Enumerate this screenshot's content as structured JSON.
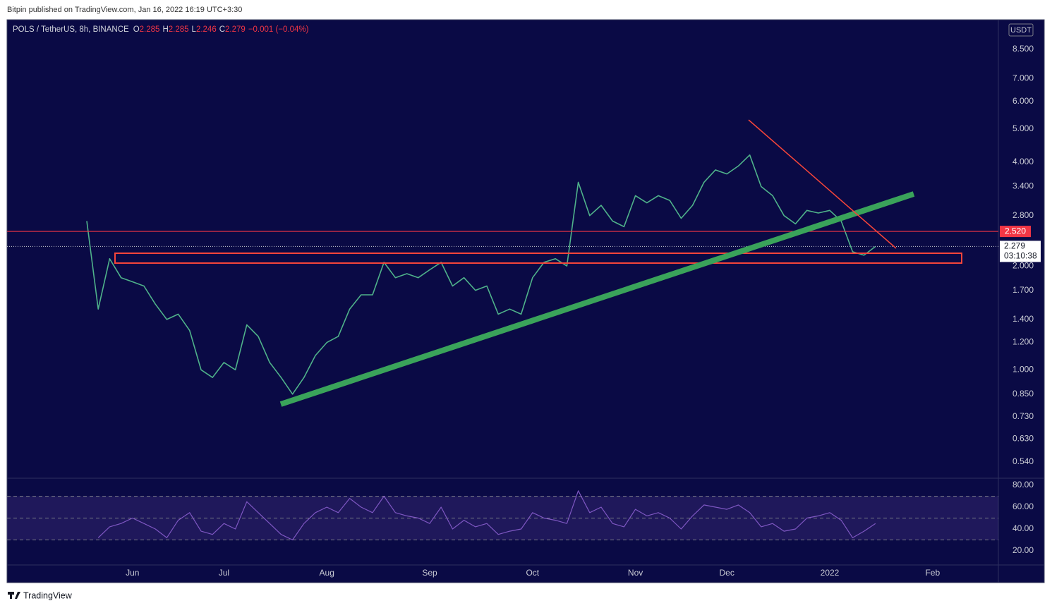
{
  "header": {
    "publisher": "Bitpin published on TradingView.com, Jan 16, 2022 16:19 UTC+3:30",
    "brand": "TradingView"
  },
  "chart_data": [
    {
      "type": "line",
      "title": "POLS / TetherUS, 8h, BINANCE",
      "ohlc": [
        {
          "label": "O",
          "value": 2.285
        },
        {
          "label": "H",
          "value": 2.285
        },
        {
          "label": "L",
          "value": 2.246
        },
        {
          "label": "C",
          "value": 2.279
        }
      ],
      "change": "−0.001 (−0.04%)",
      "currency": "USDT",
      "log_scale": true,
      "color": "#4fb28a",
      "categories": [
        null,
        null,
        null,
        null,
        "Jun",
        null,
        null,
        null,
        null,
        null,
        null,
        null,
        "Jul",
        null,
        null,
        null,
        null,
        null,
        null,
        null,
        null,
        "Aug",
        null,
        null,
        null,
        null,
        null,
        null,
        null,
        null,
        "Sep",
        null,
        null,
        null,
        null,
        null,
        null,
        null,
        null,
        "Oct",
        null,
        null,
        null,
        null,
        null,
        null,
        null,
        null,
        "Nov",
        null,
        null,
        null,
        null,
        null,
        null,
        null,
        "Dec",
        null,
        null,
        null,
        null,
        null,
        null,
        null,
        null,
        "2022",
        null,
        null,
        null,
        null,
        null,
        null,
        null,
        null,
        "Feb",
        null,
        null,
        null,
        null,
        null
      ],
      "values": [
        2.7,
        1.5,
        2.1,
        1.85,
        1.8,
        1.75,
        1.55,
        1.4,
        1.45,
        1.3,
        1.0,
        0.95,
        1.05,
        1.0,
        1.35,
        1.25,
        1.05,
        0.95,
        0.85,
        0.95,
        1.1,
        1.2,
        1.25,
        1.5,
        1.65,
        1.65,
        2.05,
        1.85,
        1.9,
        1.85,
        1.95,
        2.05,
        1.75,
        1.85,
        1.7,
        1.75,
        1.45,
        1.5,
        1.45,
        1.85,
        2.05,
        2.1,
        2.0,
        3.5,
        2.8,
        3.0,
        2.7,
        2.6,
        3.2,
        3.05,
        3.2,
        3.1,
        2.75,
        3.0,
        3.5,
        3.8,
        3.7,
        3.9,
        4.2,
        3.4,
        3.2,
        2.8,
        2.65,
        2.9,
        2.85,
        2.9,
        2.7,
        2.2,
        2.15,
        2.279,
        null,
        null,
        null,
        null,
        null,
        null,
        null,
        null,
        null,
        null
      ],
      "ylim": [
        0.487,
        10.36
      ],
      "yticks": [
        {
          "value": 8.5,
          "label": "8.500"
        },
        {
          "value": 7,
          "label": "7.000"
        },
        {
          "value": 6,
          "label": "6.000"
        },
        {
          "value": 5,
          "label": "5.000"
        },
        {
          "value": 4,
          "label": "4.000"
        },
        {
          "value": 3.4,
          "label": "3.400"
        },
        {
          "value": 2.8,
          "label": "2.800"
        },
        {
          "value": 2,
          "label": "2.000"
        },
        {
          "value": 1.7,
          "label": "1.700"
        },
        {
          "value": 1.4,
          "label": "1.400"
        },
        {
          "value": 1.2,
          "label": "1.200"
        },
        {
          "value": 1,
          "label": "1.000"
        },
        {
          "value": 0.85,
          "label": "0.850"
        },
        {
          "value": 0.73,
          "label": "0.730"
        },
        {
          "value": 0.63,
          "label": "0.630"
        },
        {
          "value": 0.54,
          "label": "0.540"
        }
      ],
      "levels": [
        {
          "value": 2.52,
          "label": "2.520",
          "color": "#f23645"
        }
      ],
      "last_price": 2.279,
      "countdown": "03:10:38"
    },
    {
      "type": "line",
      "color": "#7e57c2",
      "values": [
        null,
        32,
        42,
        45,
        50,
        45,
        40,
        32,
        48,
        55,
        38,
        35,
        45,
        40,
        65,
        55,
        45,
        35,
        30,
        45,
        55,
        60,
        55,
        68,
        60,
        55,
        70,
        55,
        52,
        50,
        45,
        60,
        40,
        48,
        42,
        45,
        35,
        38,
        40,
        55,
        50,
        48,
        45,
        75,
        55,
        60,
        45,
        42,
        58,
        52,
        55,
        50,
        40,
        52,
        62,
        60,
        58,
        62,
        55,
        42,
        45,
        38,
        40,
        50,
        52,
        55,
        48,
        32,
        38,
        45,
        null,
        null,
        null,
        null,
        null,
        null,
        null,
        null,
        null,
        null
      ],
      "ylim": [
        7.7,
        85.2
      ],
      "yticks": [
        {
          "value": 80,
          "label": "80.00"
        },
        {
          "value": 60,
          "label": "60.00"
        },
        {
          "value": 40,
          "label": "40.00"
        },
        {
          "value": 20,
          "label": "20.00"
        }
      ],
      "bands": [
        70,
        50,
        30
      ]
    }
  ]
}
